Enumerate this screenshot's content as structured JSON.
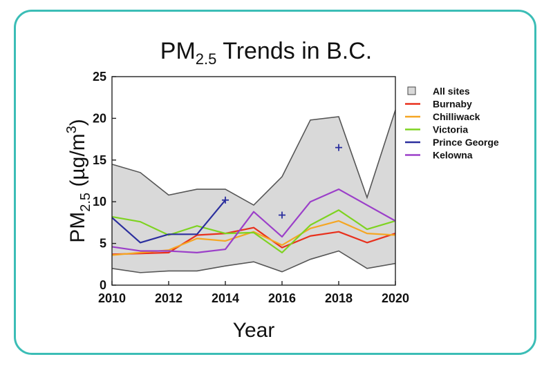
{
  "chart_data": {
    "type": "line",
    "title": "PM",
    "title_subscript": "2.5",
    "title_suffix": " Trends in B.C.",
    "xlabel": "Year",
    "ylabel_main": "PM",
    "ylabel_sub": "2.5",
    "ylabel_unit": " (µg/m",
    "ylabel_sup": "3",
    "ylabel_close": ")",
    "xlim": [
      2010,
      2020
    ],
    "ylim": [
      0,
      25
    ],
    "xticks": [
      2010,
      2012,
      2014,
      2016,
      2018,
      2020
    ],
    "yticks": [
      0,
      5,
      10,
      15,
      20,
      25
    ],
    "grid": false,
    "legend_position": "right",
    "range_band": {
      "name": "All sites",
      "x": [
        2010,
        2011,
        2012,
        2013,
        2014,
        2015,
        2016,
        2017,
        2018,
        2019,
        2020
      ],
      "upper": [
        14.5,
        13.5,
        10.8,
        11.5,
        11.5,
        9.6,
        13.0,
        19.8,
        20.2,
        10.5,
        21.0
      ],
      "lower": [
        2.0,
        1.5,
        1.7,
        1.7,
        2.3,
        2.8,
        1.6,
        3.1,
        4.1,
        2.0,
        2.6
      ],
      "fill": "#d9d9d9",
      "stroke": "#555555"
    },
    "series": [
      {
        "name": "Burnaby",
        "color": "#e8301c",
        "points": [
          [
            2010,
            3.7
          ],
          [
            2011,
            3.8
          ],
          [
            2012,
            3.9
          ],
          [
            2013,
            6.0
          ],
          [
            2014,
            6.2
          ],
          [
            2015,
            6.9
          ],
          [
            2016,
            4.5
          ],
          [
            2017,
            5.9
          ],
          [
            2018,
            6.4
          ],
          [
            2019,
            5.1
          ],
          [
            2020,
            6.2
          ]
        ]
      },
      {
        "name": "Chilliwack",
        "color": "#f5a623",
        "points": [
          [
            2010,
            3.6
          ],
          [
            2011,
            3.9
          ],
          [
            2012,
            4.2
          ],
          [
            2013,
            5.6
          ],
          [
            2014,
            5.3
          ],
          [
            2015,
            6.4
          ],
          [
            2016,
            4.8
          ],
          [
            2017,
            6.8
          ],
          [
            2018,
            7.7
          ],
          [
            2019,
            6.2
          ],
          [
            2020,
            6.0
          ]
        ]
      },
      {
        "name": "Victoria",
        "color": "#7ed321",
        "points": [
          [
            2010,
            8.2
          ],
          [
            2011,
            7.6
          ],
          [
            2012,
            6.0
          ],
          [
            2013,
            7.1
          ],
          [
            2014,
            6.2
          ],
          [
            2015,
            6.3
          ],
          [
            2016,
            3.9
          ],
          [
            2017,
            7.2
          ],
          [
            2018,
            9.0
          ],
          [
            2019,
            6.7
          ],
          [
            2020,
            7.7
          ]
        ]
      },
      {
        "name": "Prince George",
        "color": "#2b2f9e",
        "points": [
          [
            2010,
            8.1
          ],
          [
            2011,
            5.1
          ],
          [
            2012,
            6.1
          ],
          [
            2013,
            6.1
          ],
          [
            2014,
            10.2
          ]
        ],
        "markers": [
          [
            2014,
            10.2
          ],
          [
            2016,
            8.4
          ],
          [
            2018,
            16.5
          ]
        ]
      },
      {
        "name": "Kelowna",
        "color": "#9b3fc9",
        "points": [
          [
            2010,
            4.6
          ],
          [
            2011,
            4.1
          ],
          [
            2012,
            4.1
          ],
          [
            2013,
            3.9
          ],
          [
            2014,
            4.3
          ],
          [
            2015,
            8.8
          ],
          [
            2016,
            5.8
          ],
          [
            2017,
            10.0
          ],
          [
            2018,
            11.5
          ],
          [
            2019,
            9.6
          ],
          [
            2020,
            7.7
          ]
        ]
      }
    ]
  }
}
